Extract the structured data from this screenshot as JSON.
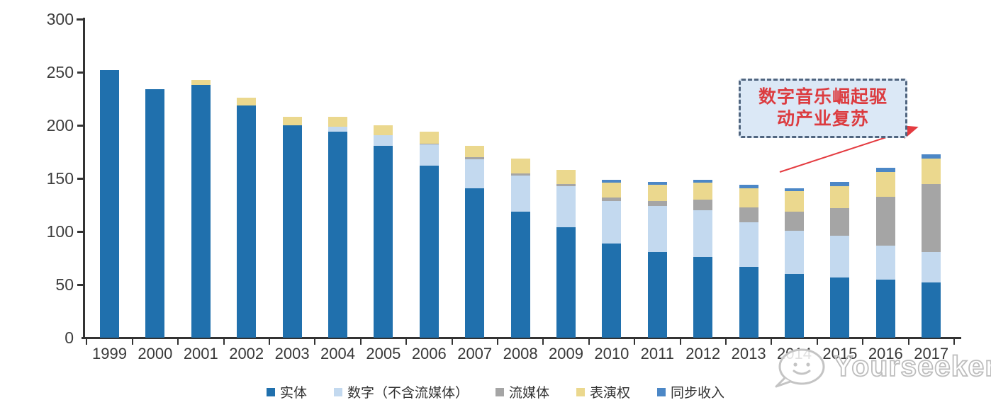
{
  "chart_data": {
    "type": "bar",
    "stacked": true,
    "title": "",
    "xlabel": "",
    "ylabel": "",
    "unit_note": "values as shown on axis (0-300)",
    "ylim": [
      0,
      300
    ],
    "yticks": [
      0,
      50,
      100,
      150,
      200,
      250,
      300
    ],
    "grid": false,
    "legend_position": "bottom",
    "categories": [
      "1999",
      "2000",
      "2001",
      "2002",
      "2003",
      "2004",
      "2005",
      "2006",
      "2007",
      "2008",
      "2009",
      "2010",
      "2011",
      "2012",
      "2013",
      "2014",
      "2015",
      "2016",
      "2017"
    ],
    "series": [
      {
        "name": "实体",
        "color": "#2070AD",
        "values": [
          252,
          234,
          238,
          219,
          200,
          194,
          181,
          162,
          141,
          119,
          104,
          89,
          81,
          76,
          67,
          60,
          57,
          55,
          52
        ]
      },
      {
        "name": "数字（不含流媒体）",
        "color": "#C3D9EF",
        "values": [
          0,
          0,
          0,
          0,
          0,
          5,
          10,
          20,
          27,
          34,
          39,
          40,
          43,
          44,
          42,
          41,
          39,
          32,
          29
        ]
      },
      {
        "name": "流媒体",
        "color": "#A5A5A5",
        "values": [
          0,
          0,
          0,
          0,
          0,
          0,
          0,
          1,
          2,
          2,
          2,
          3,
          5,
          10,
          14,
          18,
          26,
          46,
          64
        ]
      },
      {
        "name": "表演权",
        "color": "#EBD88E",
        "values": [
          0,
          0,
          5,
          7,
          8,
          9,
          9,
          11,
          11,
          14,
          13,
          14,
          15,
          16,
          18,
          19,
          21,
          23,
          24
        ]
      },
      {
        "name": "同步收入",
        "color": "#4C87C6",
        "values": [
          0,
          0,
          0,
          0,
          0,
          0,
          0,
          0,
          0,
          0,
          0,
          3,
          3,
          3,
          3,
          3,
          4,
          4,
          4
        ]
      }
    ],
    "totals": [
      252,
      234,
      243,
      226,
      208,
      208,
      200,
      194,
      181,
      169,
      158,
      149,
      147,
      149,
      144,
      141,
      147,
      160,
      173
    ]
  },
  "annotation": {
    "lines": [
      "数字音乐崛起驱",
      "动产业复苏"
    ],
    "text_color": "#dc3c40",
    "box_fill": "#dbe8f6",
    "box_border": "#50657f",
    "arrow_color": "#e43b40"
  },
  "watermark": {
    "text": "Yourseeker"
  }
}
